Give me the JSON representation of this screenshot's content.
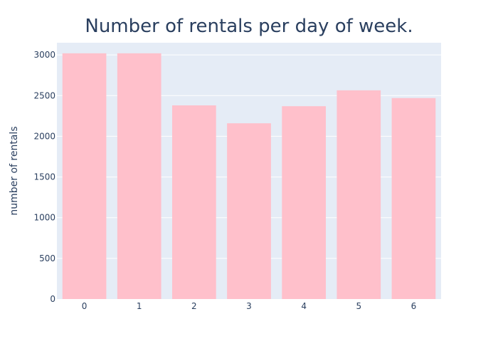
{
  "chart_data": {
    "type": "bar",
    "title": "Number of rentals per day of week.",
    "xlabel": "",
    "ylabel": "number of rentals",
    "categories": [
      "0",
      "1",
      "2",
      "3",
      "4",
      "5",
      "6"
    ],
    "values": [
      3020,
      3020,
      2380,
      2160,
      2370,
      2565,
      2470
    ],
    "ylim": [
      0,
      3150
    ],
    "yticks": [
      0,
      500,
      1000,
      1500,
      2000,
      2500,
      3000
    ],
    "grid": true,
    "legend": "none",
    "colors": {
      "bar": "#ffc0cb",
      "plot_background": "#e5ecf6",
      "gridline": "#ffffff",
      "text": "#2a3f5f"
    }
  }
}
